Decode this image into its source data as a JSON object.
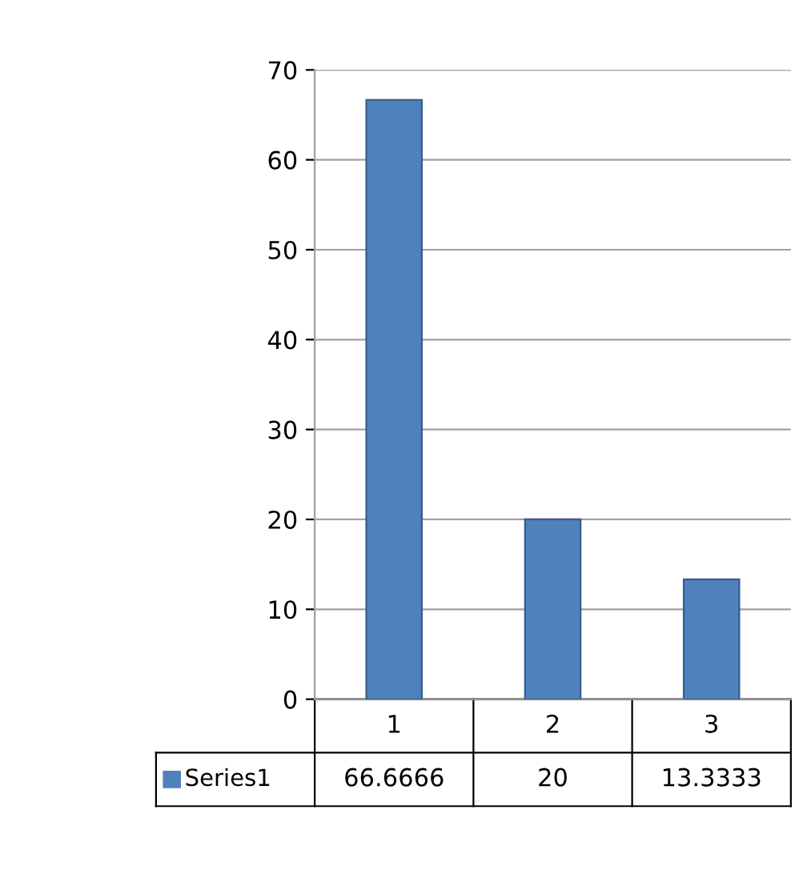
{
  "chart_data": {
    "type": "bar",
    "categories": [
      "1",
      "2",
      "3"
    ],
    "series": [
      {
        "name": "Series1",
        "color": "#4f81bd",
        "values": [
          66.6666,
          20,
          13.3333
        ]
      }
    ],
    "ylim": [
      0,
      70
    ],
    "yticks": [
      0,
      10,
      20,
      30,
      40,
      50,
      60,
      70
    ],
    "grid": "y",
    "legend": "bottom",
    "data_labels": true
  }
}
